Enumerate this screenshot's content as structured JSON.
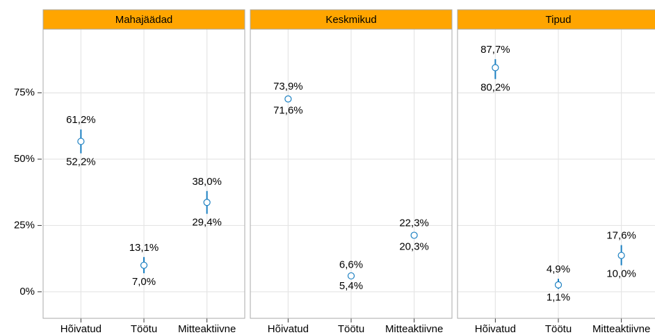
{
  "chart_data": {
    "type": "errorbar-facet",
    "categories": [
      "Hõivatud",
      "Töötu",
      "Mitteaktiivne"
    ],
    "ylim": [
      -10,
      99
    ],
    "yticks": [
      {
        "value": 0,
        "label": "0%"
      },
      {
        "value": 25,
        "label": "25%"
      },
      {
        "value": 50,
        "label": "50%"
      },
      {
        "value": 75,
        "label": "75%"
      }
    ],
    "color": "#1a7fc1",
    "strip_color": "#ffa500",
    "grid": true,
    "panels": [
      {
        "title": "Mahajäädad",
        "values": [
          56.7,
          10.0,
          33.7
        ],
        "lower": [
          52.2,
          7.0,
          29.4
        ],
        "upper": [
          61.2,
          13.1,
          38.0
        ],
        "lower_labels": [
          "52,2%",
          "7,0%",
          "29,4%"
        ],
        "upper_labels": [
          "61,2%",
          "13,1%",
          "38,0%"
        ]
      },
      {
        "title": "Keskmikud",
        "values": [
          72.7,
          6.0,
          21.3
        ],
        "lower": [
          71.6,
          5.4,
          20.3
        ],
        "upper": [
          73.9,
          6.6,
          22.3
        ],
        "lower_labels": [
          "71,6%",
          "5,4%",
          "20,3%"
        ],
        "upper_labels": [
          "73,9%",
          "6,6%",
          "22,3%"
        ]
      },
      {
        "title": "Tipud",
        "values": [
          84.5,
          2.6,
          13.7
        ],
        "lower": [
          80.2,
          1.1,
          10.0
        ],
        "upper": [
          87.7,
          4.9,
          17.6
        ],
        "lower_labels": [
          "80,2%",
          "1,1%",
          "10,0%"
        ],
        "upper_labels": [
          "87,7%",
          "4,9%",
          "17,6%"
        ]
      }
    ]
  }
}
